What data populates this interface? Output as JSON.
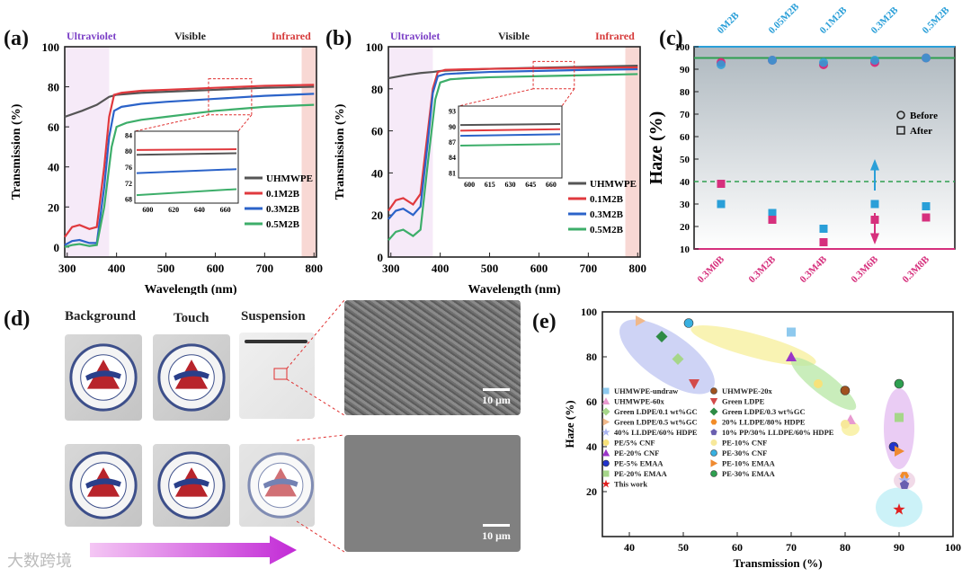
{
  "panels": {
    "a": "(a)",
    "b": "(b)",
    "c": "(c)",
    "d": "(d)",
    "e": "(e)"
  },
  "regions": {
    "uv": "Ultraviolet",
    "vis": "Visible",
    "ir": "Infrared"
  },
  "colors": {
    "uhmwpe": "#555555",
    "m01": "#e0393e",
    "m03": "#2b63c9",
    "m05": "#3dae6a",
    "pinkText": "#d6307d",
    "blueText": "#2a9fd8"
  },
  "chart_data": [
    {
      "type": "line",
      "id": "a",
      "xlabel": "Wavelength (nm)",
      "ylabel": "Transmission (%)",
      "xlim": [
        295,
        805
      ],
      "ylim": [
        -5,
        100
      ],
      "xticks": [
        300,
        400,
        500,
        600,
        700,
        800
      ],
      "yticks": [
        0,
        20,
        40,
        60,
        80,
        100
      ],
      "series": [
        {
          "name": "UHMWPE",
          "color": "#555555",
          "x": [
            295,
            330,
            360,
            385,
            400,
            450,
            500,
            600,
            700,
            800
          ],
          "y": [
            65,
            68,
            71,
            75,
            76,
            77,
            77.5,
            78.5,
            79.5,
            80
          ]
        },
        {
          "name": "0.1M2B",
          "color": "#e0393e",
          "x": [
            295,
            310,
            325,
            345,
            360,
            375,
            385,
            395,
            410,
            450,
            500,
            600,
            700,
            800
          ],
          "y": [
            5,
            10,
            11,
            9,
            10,
            40,
            65,
            76,
            77,
            78,
            78.5,
            79.5,
            80.5,
            81
          ]
        },
        {
          "name": "0.3M2B",
          "color": "#2b63c9",
          "x": [
            295,
            310,
            325,
            345,
            360,
            375,
            385,
            395,
            410,
            450,
            500,
            600,
            700,
            800
          ],
          "y": [
            1,
            3,
            3.5,
            2,
            2,
            30,
            55,
            68,
            70,
            71.5,
            72.5,
            74,
            75.5,
            76.5
          ]
        },
        {
          "name": "0.5M2B",
          "color": "#3dae6a",
          "x": [
            295,
            310,
            325,
            345,
            360,
            375,
            390,
            400,
            420,
            450,
            500,
            600,
            700,
            800
          ],
          "y": [
            0,
            1,
            1.5,
            0.5,
            1,
            20,
            50,
            60,
            62,
            63.5,
            65,
            68,
            70,
            71
          ]
        }
      ],
      "inset": {
        "xlim": [
          590,
          670
        ],
        "ylim": [
          67,
          85
        ],
        "xticks": [
          600,
          620,
          640,
          660
        ],
        "yticks": [
          68,
          72,
          76,
          80,
          84
        ],
        "series": [
          {
            "color": "#e0393e",
            "y": [
              80.3,
              80.5
            ]
          },
          {
            "color": "#555555",
            "y": [
              79.1,
              79.5
            ]
          },
          {
            "color": "#2b63c9",
            "y": [
              74.5,
              75.5
            ]
          },
          {
            "color": "#3dae6a",
            "y": [
              69,
              70.5
            ]
          }
        ]
      }
    },
    {
      "type": "line",
      "id": "b",
      "xlabel": "Wavelength (nm)",
      "ylabel": "Transmission (%)",
      "xlim": [
        295,
        805
      ],
      "ylim": [
        0,
        100
      ],
      "xticks": [
        300,
        400,
        500,
        600,
        700,
        800
      ],
      "yticks": [
        0,
        20,
        40,
        60,
        80,
        100
      ],
      "series": [
        {
          "name": "UHMWPE",
          "color": "#555555",
          "x": [
            295,
            330,
            360,
            385,
            400,
            450,
            500,
            600,
            700,
            800
          ],
          "y": [
            85,
            86.5,
            87.5,
            88,
            88.5,
            89,
            89.5,
            90,
            90.5,
            91
          ]
        },
        {
          "name": "0.1M2B",
          "color": "#e0393e",
          "x": [
            295,
            310,
            325,
            345,
            360,
            375,
            385,
            395,
            410,
            450,
            500,
            600,
            700,
            800
          ],
          "y": [
            22,
            27,
            28,
            25,
            30,
            60,
            80,
            88,
            89,
            89.3,
            89.5,
            89.8,
            90,
            90.2
          ]
        },
        {
          "name": "0.3M2B",
          "color": "#2b63c9",
          "x": [
            295,
            310,
            325,
            345,
            360,
            375,
            385,
            395,
            410,
            450,
            500,
            600,
            700,
            800
          ],
          "y": [
            18,
            22,
            23,
            20,
            24,
            55,
            78,
            86,
            87,
            87.5,
            88,
            88.5,
            89,
            89.3
          ]
        },
        {
          "name": "0.5M2B",
          "color": "#3dae6a",
          "x": [
            295,
            310,
            325,
            345,
            360,
            375,
            390,
            400,
            420,
            450,
            500,
            600,
            700,
            800
          ],
          "y": [
            8,
            12,
            13,
            10,
            13,
            45,
            75,
            83,
            84.5,
            85,
            85.5,
            86,
            86.5,
            87
          ]
        }
      ],
      "inset": {
        "xlim": [
          592,
          668
        ],
        "ylim": [
          80,
          94
        ],
        "xticks": [
          600,
          615,
          630,
          645,
          660
        ],
        "yticks": [
          81,
          84,
          87,
          90,
          93
        ],
        "series": [
          {
            "color": "#555555",
            "y": [
              90.3,
              90.5
            ]
          },
          {
            "color": "#e0393e",
            "y": [
              89.2,
              89.5
            ]
          },
          {
            "color": "#2b63c9",
            "y": [
              88.2,
              88.5
            ]
          },
          {
            "color": "#3dae6a",
            "y": [
              86.3,
              86.6
            ]
          }
        ]
      }
    },
    {
      "type": "scatter",
      "id": "c",
      "ylabel": "Haze (%)",
      "ylim": [
        10,
        100
      ],
      "yticks": [
        10,
        20,
        30,
        40,
        50,
        60,
        70,
        80,
        90,
        100
      ],
      "top_categories": [
        "0M2B",
        "0.05M2B",
        "0.1M2B",
        "0.3M2B",
        "0.5M2B"
      ],
      "bottom_categories": [
        "0.3M0B",
        "0.3M2B",
        "0.3M4B",
        "0.3M6B",
        "0.3M8B"
      ],
      "before_blue": [
        92,
        94,
        93,
        94,
        95
      ],
      "before_pink": [
        93,
        94,
        92,
        93,
        95
      ],
      "after_blue": [
        30,
        26,
        19,
        30,
        29
      ],
      "after_pink": [
        39,
        23,
        13,
        23,
        24
      ],
      "solid_line": 95,
      "dashed_line": 40,
      "legend": {
        "before": "Before",
        "after": "After"
      }
    },
    {
      "type": "scatter",
      "id": "e",
      "xlabel": "Transmission (%)",
      "ylabel": "Haze (%)",
      "xlim": [
        35,
        100
      ],
      "ylim": [
        0,
        100
      ],
      "xticks": [
        40,
        50,
        60,
        70,
        80,
        90,
        100
      ],
      "yticks": [
        20,
        40,
        60,
        80,
        100
      ],
      "points": [
        {
          "label": "UHMWPE-undraw",
          "shape": "square",
          "color": "#8ec9ee",
          "x": 70,
          "y": 91
        },
        {
          "label": "UHMWPE-20x",
          "shape": "ball",
          "color": "#a0521e",
          "x": 80,
          "y": 65
        },
        {
          "label": "UHMWPE-60x",
          "shape": "triangle",
          "color": "#e89ad0",
          "x": 81,
          "y": 52
        },
        {
          "label": "Green LDPE",
          "shape": "tri-down",
          "color": "#d34a4a",
          "x": 52,
          "y": 68
        },
        {
          "label": "Green LDPE/0.1 wt%GC",
          "shape": "diamond",
          "color": "#a6d68a",
          "x": 49,
          "y": 79
        },
        {
          "label": "Green LDPE/0.3 wt%GC",
          "shape": "diamond",
          "color": "#2e8b45",
          "x": 46,
          "y": 89
        },
        {
          "label": "Green LDPE/0.5 wt%GC",
          "shape": "tri-right",
          "color": "#f0b88a",
          "x": 42,
          "y": 96
        },
        {
          "label": "20% LLDPE/80% HDPE",
          "shape": "hexagon",
          "color": "#f28c28",
          "x": 91,
          "y": 27
        },
        {
          "label": "40% LLDPE/60% HDPE",
          "shape": "star",
          "color": "#a9b4f0",
          "x": 91,
          "y": 25
        },
        {
          "label": "10% PP/30% LLDPE/60% HDPE",
          "shape": "pentagon",
          "color": "#6a5fb0",
          "x": 91,
          "y": 23
        },
        {
          "label": "PE/5% CNF",
          "shape": "circle",
          "color": "#f7e27a",
          "x": 75,
          "y": 68
        },
        {
          "label": "PE-10% CNF",
          "shape": "circle",
          "color": "#f7e89a",
          "x": 80,
          "y": 50
        },
        {
          "label": "PE-20% CNF",
          "shape": "triangle",
          "color": "#9b35c8",
          "x": 70,
          "y": 80
        },
        {
          "label": "PE-30% CNF",
          "shape": "ball",
          "color": "#38b0e0",
          "x": 51,
          "y": 95
        },
        {
          "label": "PE-5% EMAA",
          "shape": "ball",
          "color": "#2233cc",
          "x": 89,
          "y": 40
        },
        {
          "label": "PE-10% EMAA",
          "shape": "tri-right",
          "color": "#ef8a30",
          "x": 90,
          "y": 38
        },
        {
          "label": "PE-20% EMAA",
          "shape": "square",
          "color": "#a6d68a",
          "x": 90,
          "y": 53
        },
        {
          "label": "PE-30% EMAA",
          "shape": "ball",
          "color": "#2e9f50",
          "x": 90,
          "y": 68
        },
        {
          "label": "This work",
          "shape": "star",
          "color": "#e02020",
          "x": 90,
          "y": 12
        }
      ]
    }
  ],
  "photos": {
    "background": "Background",
    "touch": "Touch",
    "suspension": "Suspension",
    "scale1": "10 μm",
    "scale2": "10 μm"
  },
  "watermark": "大数跨境"
}
